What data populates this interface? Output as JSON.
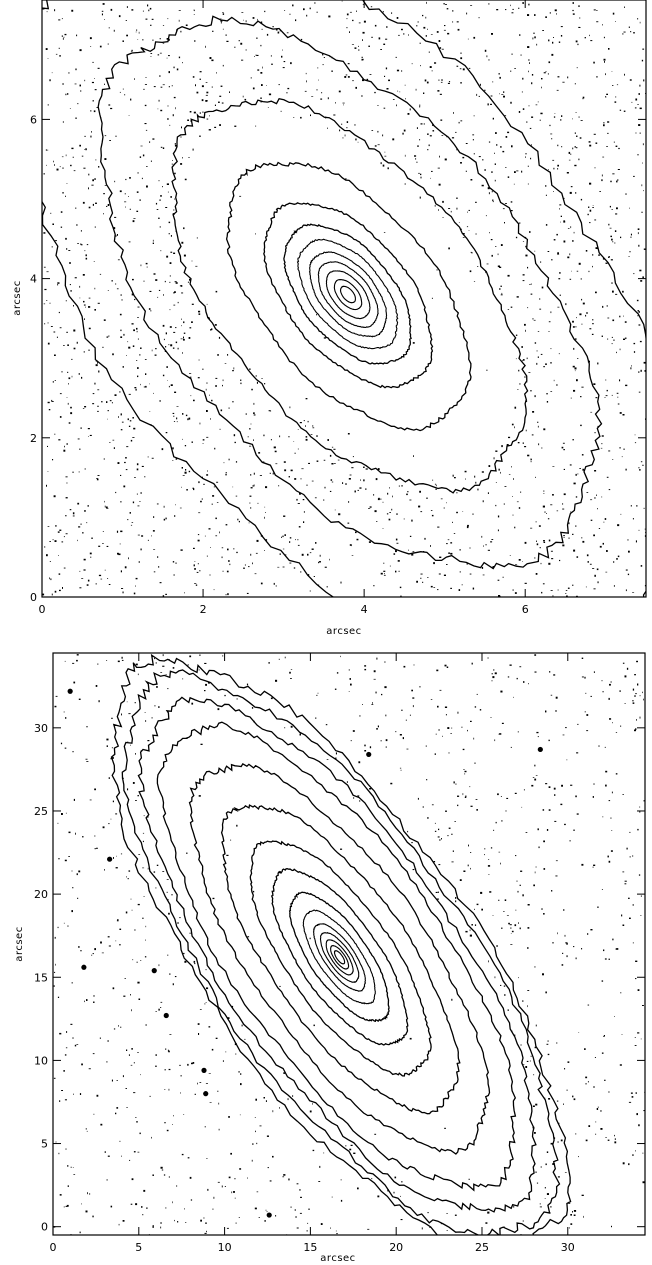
{
  "chart_data": [
    {
      "type": "contour",
      "xlabel": "arcsec",
      "ylabel": "arcsec",
      "xlim": [
        0,
        7.5
      ],
      "ylim": [
        0,
        7.5
      ],
      "x_ticks": [
        0,
        2,
        4,
        6
      ],
      "y_ticks": [
        0,
        2,
        4,
        6
      ],
      "center": [
        3.8,
        3.8
      ],
      "position_angle_deg": 130,
      "axis_ratio": 0.55,
      "contour_semi_major_axes": [
        0.12,
        0.22,
        0.35,
        0.48,
        0.62,
        0.8,
        1.02,
        1.35,
        1.95,
        2.85,
        4.0,
        5.3
      ],
      "grid": false,
      "legend": "none"
    },
    {
      "type": "contour",
      "xlabel": "arcsec",
      "ylabel": "arcsec",
      "xlim": [
        0,
        34.5
      ],
      "ylim": [
        -0.5,
        34.5
      ],
      "x_ticks": [
        0,
        5,
        10,
        15,
        20,
        25,
        30
      ],
      "y_ticks": [
        0,
        5,
        10,
        15,
        20,
        25,
        30
      ],
      "center": [
        16.7,
        16.2
      ],
      "position_angle_deg": 125,
      "axis_ratio": 0.38,
      "contour_semi_major_axes": [
        0.45,
        0.8,
        1.2,
        1.7,
        2.3,
        3.2,
        4.4,
        6.0,
        8.0,
        10.5,
        13.2,
        15.8,
        17.5,
        19.2,
        20.3
      ],
      "point_sources": [
        [
          1.8,
          15.6
        ],
        [
          3.3,
          22.1
        ],
        [
          5.9,
          15.4
        ],
        [
          6.6,
          12.7
        ],
        [
          8.8,
          9.4
        ],
        [
          8.9,
          8.0
        ],
        [
          12.6,
          0.7
        ],
        [
          18.4,
          28.4
        ],
        [
          28.4,
          28.7
        ],
        [
          1.0,
          32.2
        ]
      ],
      "grid": false,
      "legend": "none"
    }
  ]
}
